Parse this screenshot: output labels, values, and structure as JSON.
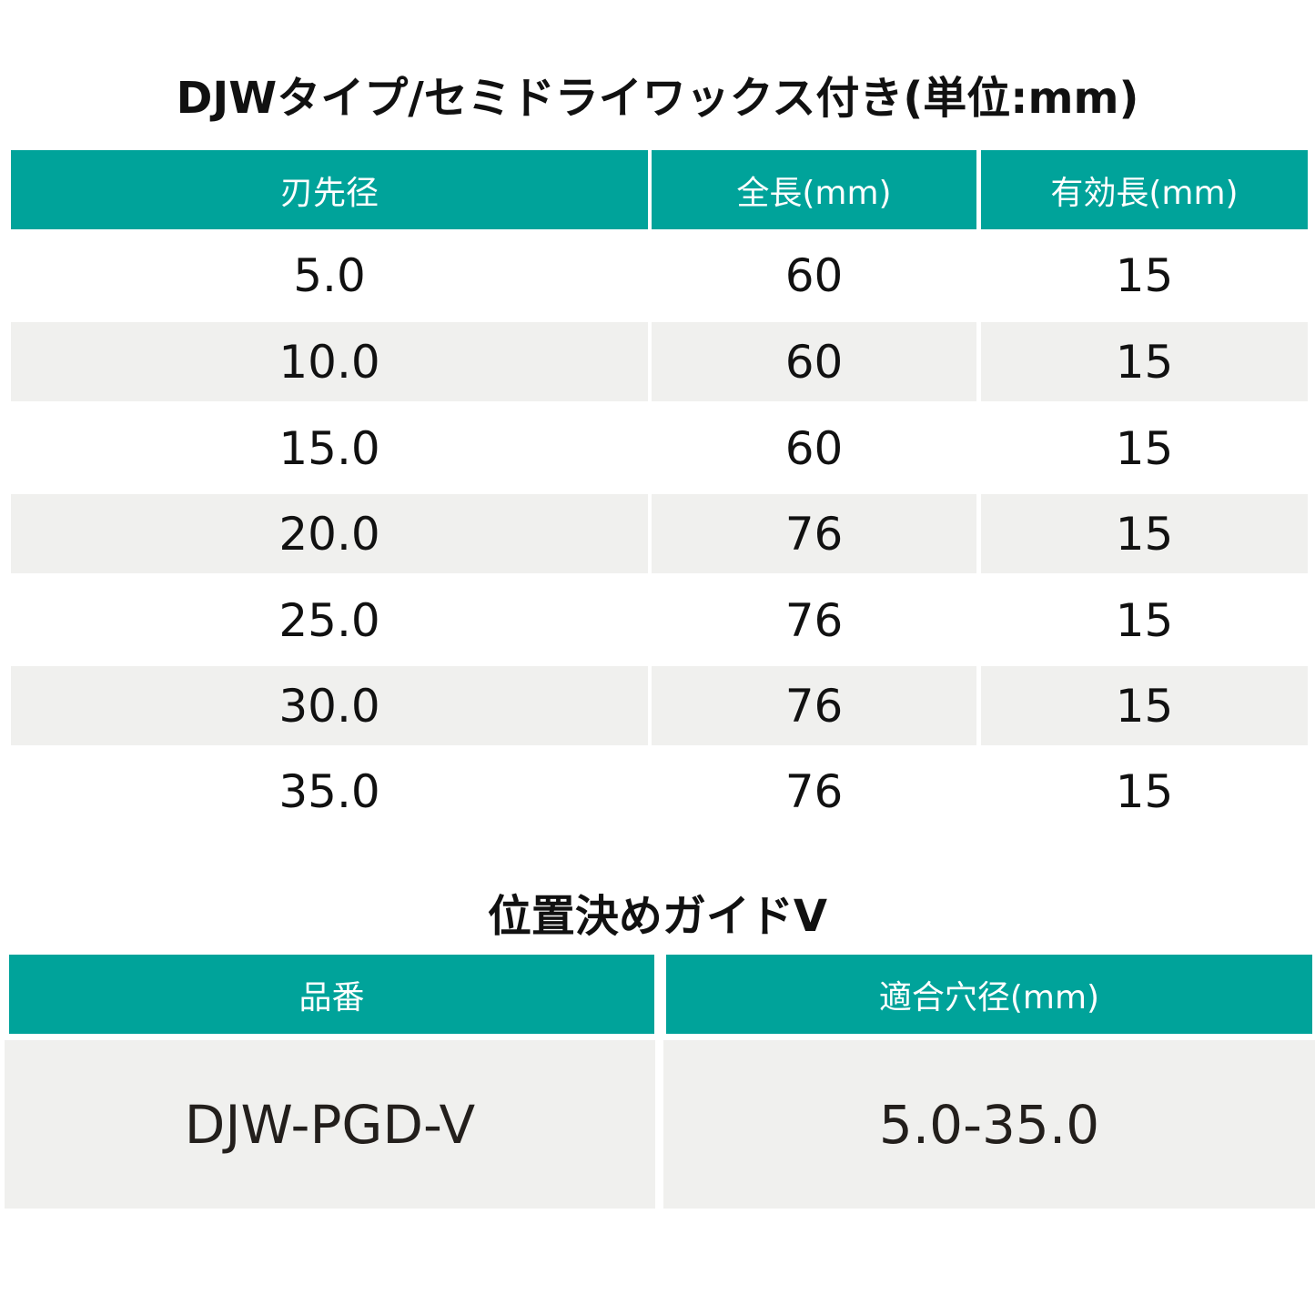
{
  "table1": {
    "title": "DJWタイプ/セミドライワックス付き(単位:mm)",
    "headers": [
      "刃先径",
      "全長(mm)",
      "有効長(mm)"
    ],
    "rows": [
      [
        "5.0",
        "60",
        "15"
      ],
      [
        "10.0",
        "60",
        "15"
      ],
      [
        "15.0",
        "60",
        "15"
      ],
      [
        "20.0",
        "76",
        "15"
      ],
      [
        "25.0",
        "76",
        "15"
      ],
      [
        "30.0",
        "76",
        "15"
      ],
      [
        "35.0",
        "76",
        "15"
      ]
    ]
  },
  "table2": {
    "title": "位置決めガイドV",
    "headers": [
      "品番",
      "適合穴径(mm)"
    ],
    "rows": [
      [
        "DJW-PGD-V",
        "5.0-35.0"
      ]
    ]
  },
  "colors": {
    "header_bg": "#00a39a",
    "header_text": "#ffffff",
    "row_shade": "#f0f0ee"
  }
}
